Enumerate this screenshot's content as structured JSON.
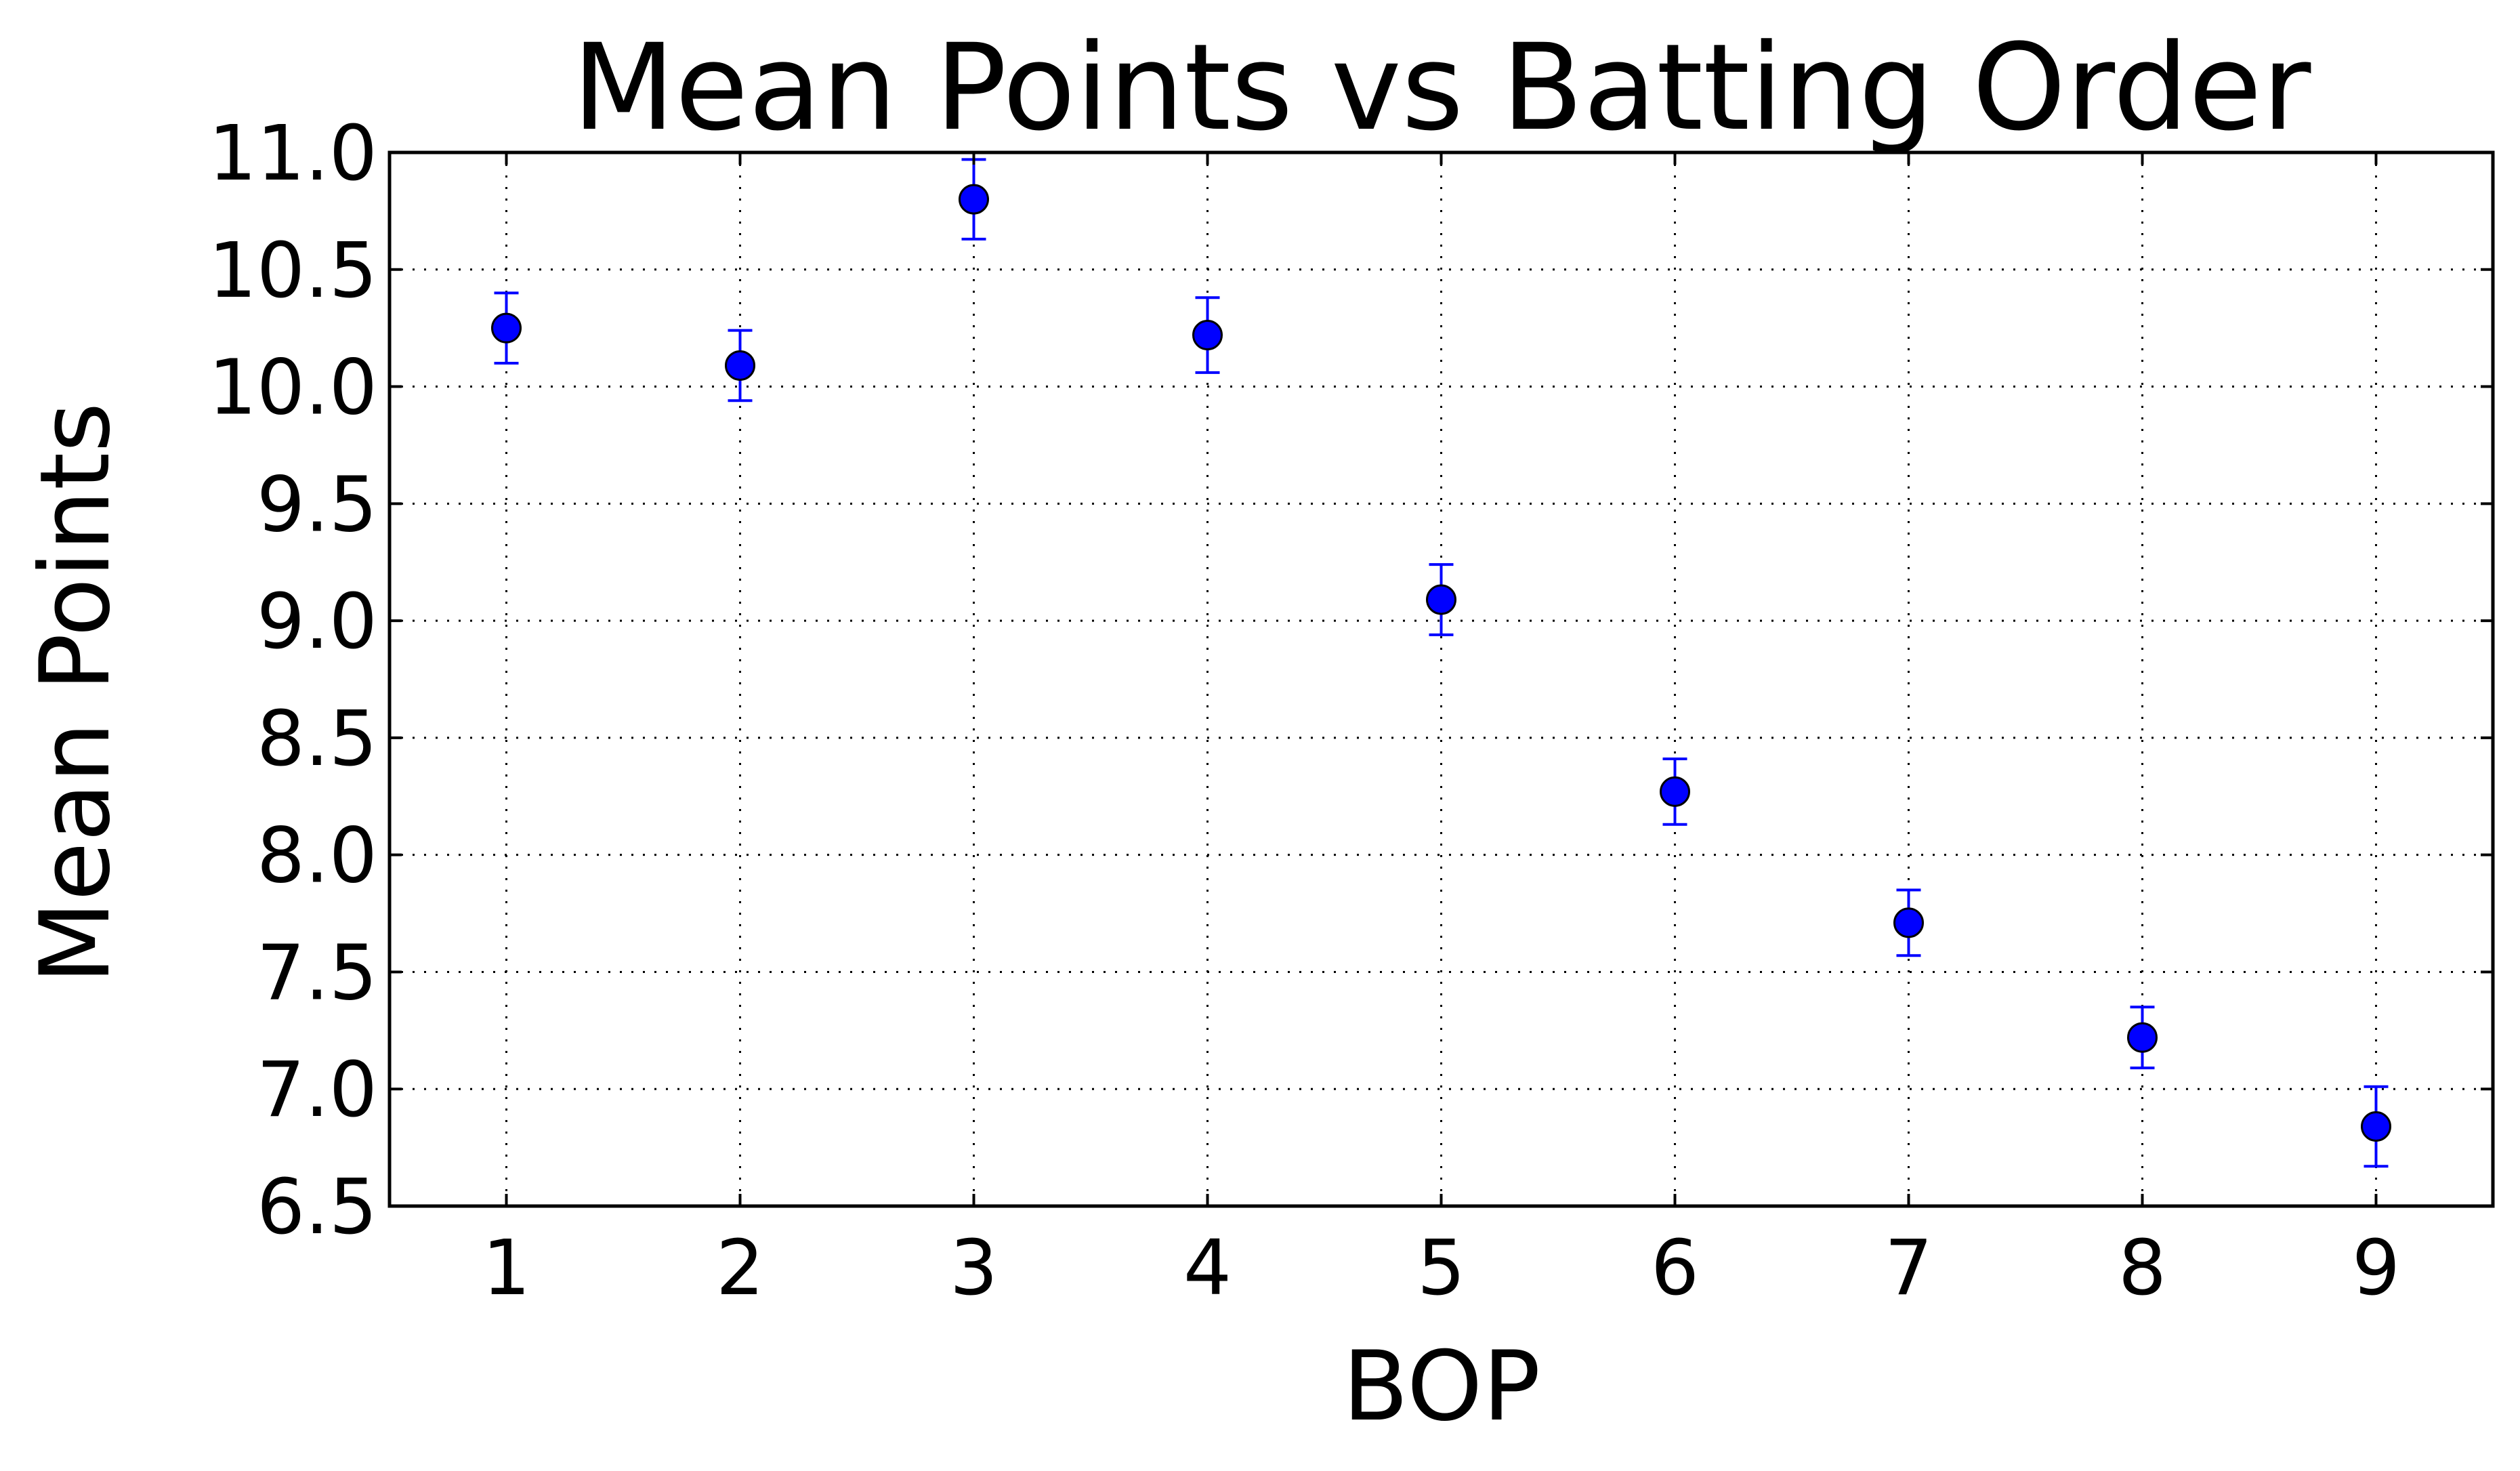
{
  "chart_data": {
    "type": "scatter",
    "title": "Mean Points vs Batting Order",
    "xlabel": "BOP",
    "ylabel": "Mean Points",
    "x": [
      1,
      2,
      3,
      4,
      5,
      6,
      7,
      8,
      9
    ],
    "y": [
      10.25,
      10.09,
      10.8,
      10.22,
      9.09,
      8.27,
      7.71,
      7.22,
      6.84
    ],
    "yerr": [
      0.15,
      0.15,
      0.17,
      0.16,
      0.15,
      0.14,
      0.14,
      0.13,
      0.17
    ],
    "xlim": [
      0.5,
      9.5
    ],
    "ylim": [
      6.5,
      11.0
    ],
    "xticks": [
      "1",
      "2",
      "3",
      "4",
      "5",
      "6",
      "7",
      "8",
      "9"
    ],
    "yticks": [
      "6.5",
      "7.0",
      "7.5",
      "8.0",
      "8.5",
      "9.0",
      "9.5",
      "10.0",
      "10.5",
      "11.0"
    ],
    "grid": true,
    "marker_color": "#0000ff",
    "errorbar_color": "#0000ff"
  }
}
